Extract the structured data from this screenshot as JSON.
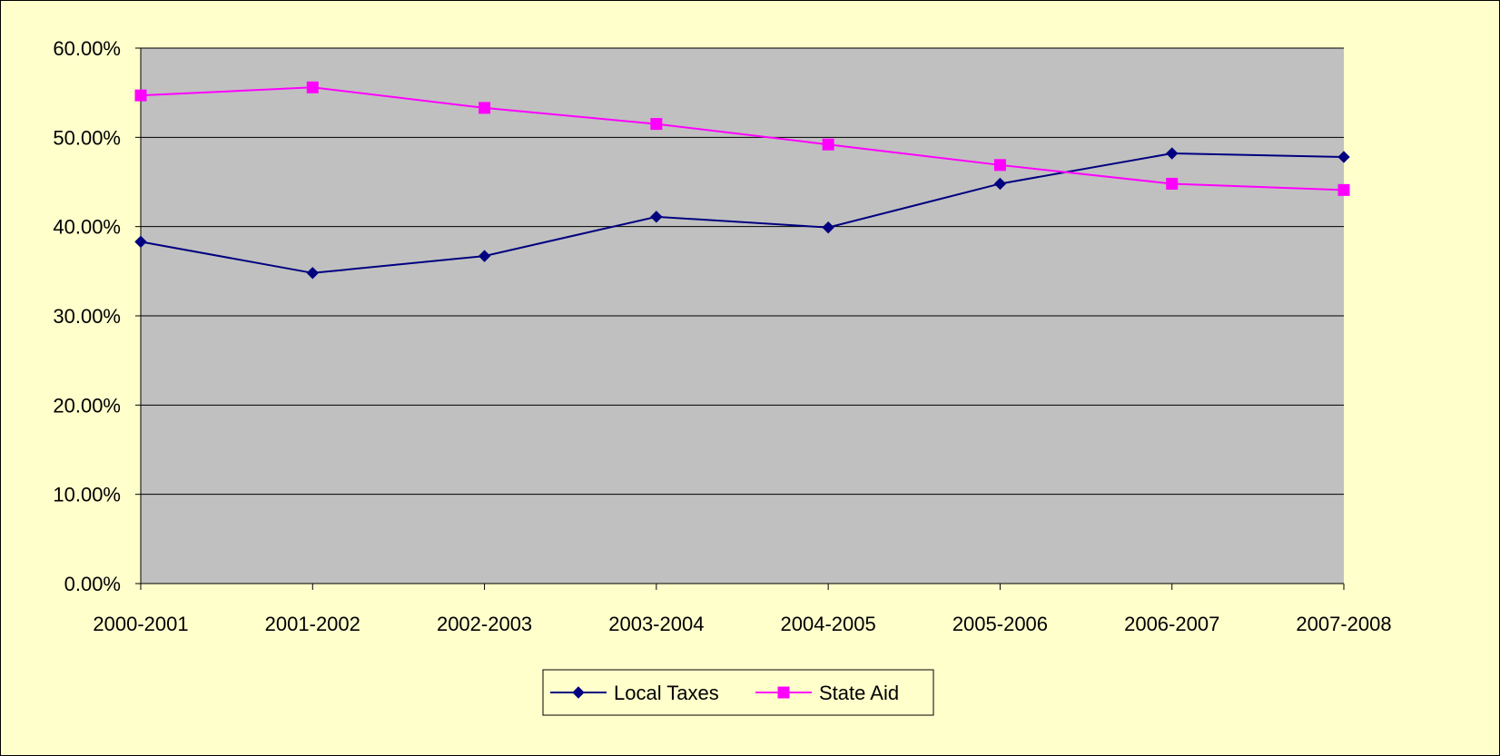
{
  "chart_data": {
    "type": "line",
    "title": "",
    "xlabel": "",
    "ylabel": "",
    "categories": [
      "2000-2001",
      "2001-2002",
      "2002-2003",
      "2003-2004",
      "2004-2005",
      "2005-2006",
      "2006-2007",
      "2007-2008"
    ],
    "yticks": [
      "0.00%",
      "10.00%",
      "20.00%",
      "30.00%",
      "40.00%",
      "50.00%",
      "60.00%"
    ],
    "ylim": [
      0,
      60
    ],
    "grid": true,
    "legend_position": "bottom",
    "series": [
      {
        "name": "Local Taxes",
        "color": "#000080",
        "marker": "diamond",
        "values": [
          38.3,
          34.8,
          36.7,
          41.1,
          39.9,
          44.8,
          48.2,
          47.8
        ]
      },
      {
        "name": "State Aid",
        "color": "#ff00ff",
        "marker": "square",
        "values": [
          54.7,
          55.6,
          53.3,
          51.5,
          49.2,
          46.9,
          44.8,
          44.1
        ]
      }
    ],
    "colors": {
      "plot_background": "#c0c0c0",
      "page_background": "#ffffcc"
    }
  }
}
